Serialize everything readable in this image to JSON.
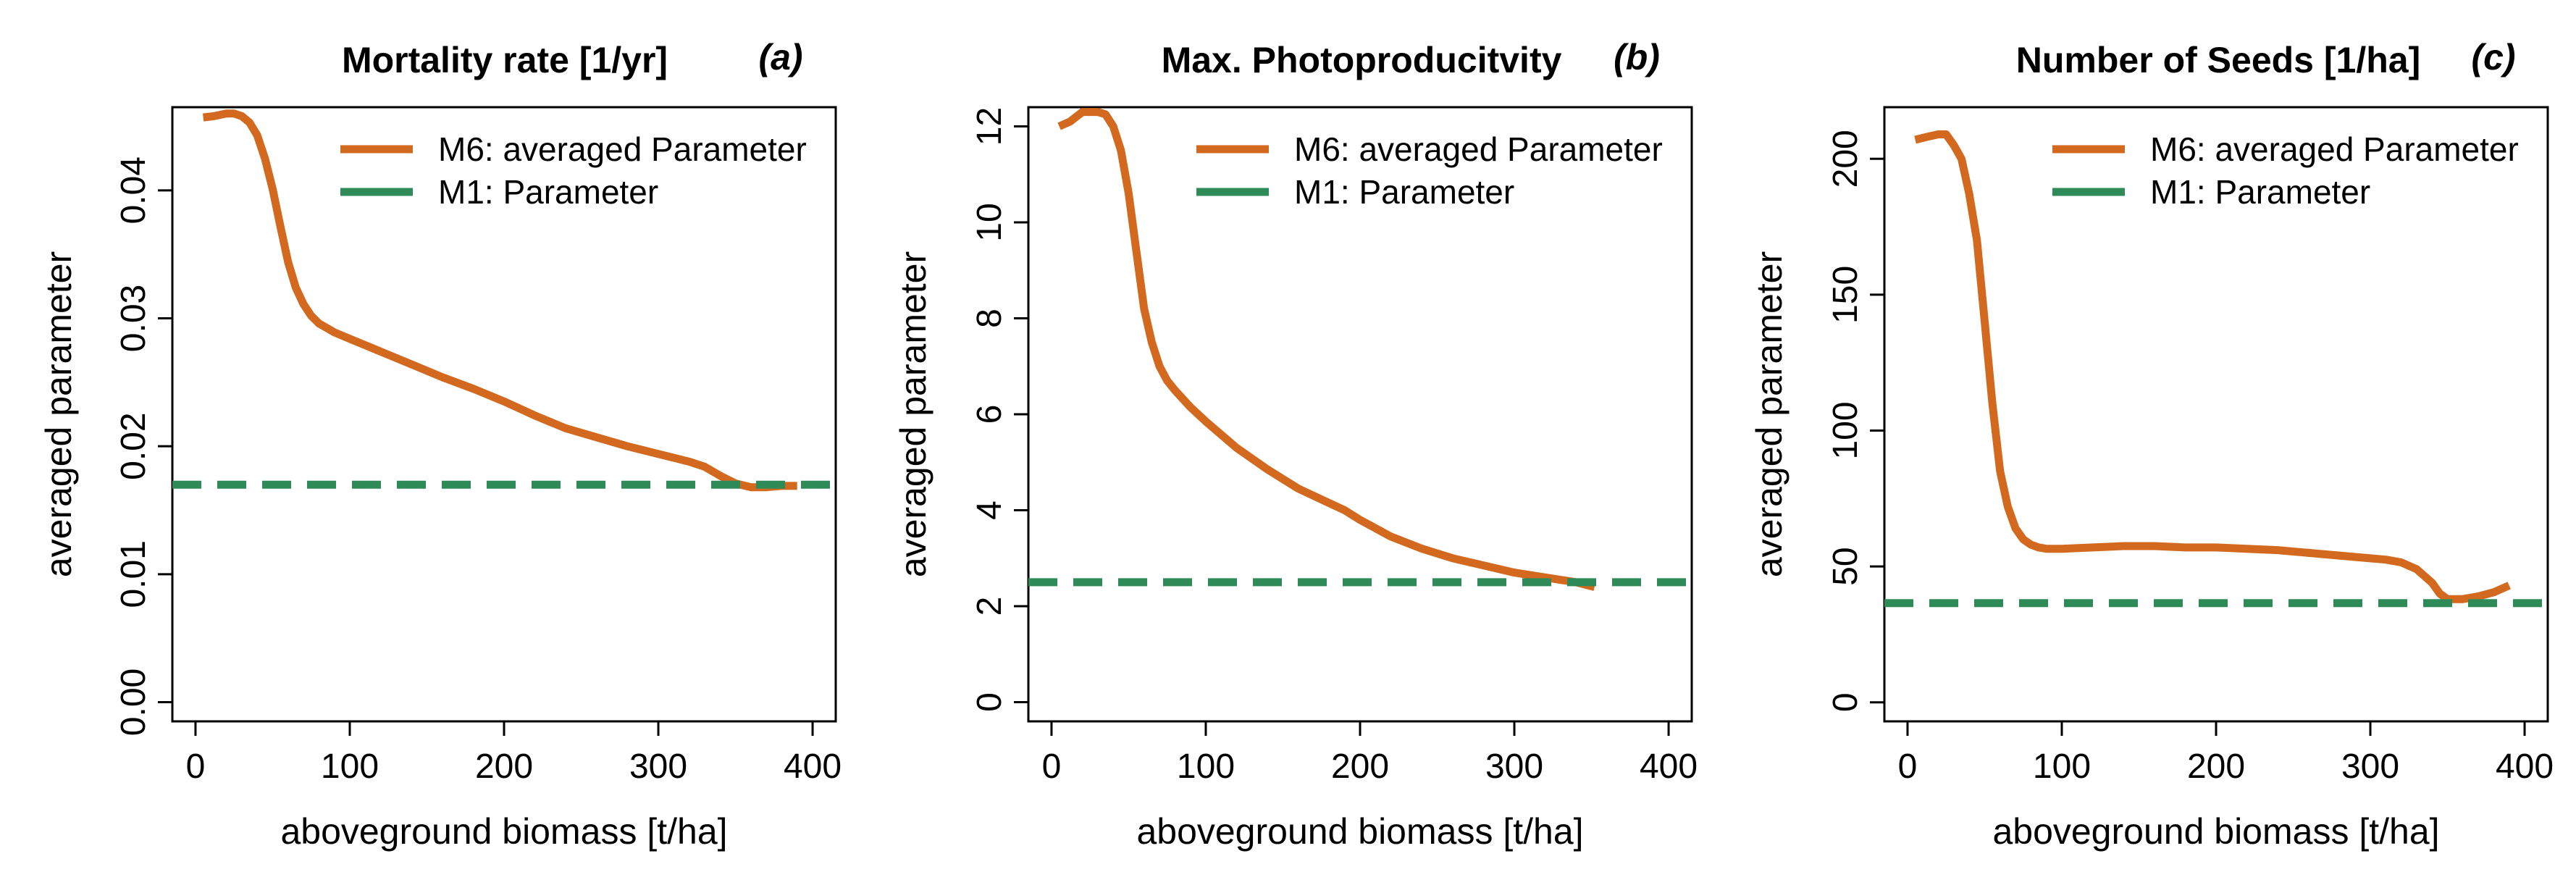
{
  "colors": {
    "m6_line": "#d2691e",
    "m1_line": "#2e8b57",
    "axis": "#000000",
    "background": "#ffffff"
  },
  "chart_data": [
    {
      "type": "line",
      "panel": "a",
      "title": "Mortality rate [1/yr]",
      "panel_letter": "(a)",
      "xlabel": "aboveground biomass [t/ha]",
      "ylabel": "averaged parameter",
      "xlim": [
        -15,
        415
      ],
      "ylim": [
        -0.0015,
        0.0465
      ],
      "x_ticks": [
        0,
        100,
        200,
        300,
        400
      ],
      "x_tick_labels": [
        "0",
        "100",
        "200",
        "300",
        "400"
      ],
      "y_ticks": [
        0,
        0.01,
        0.02,
        0.03,
        0.04
      ],
      "y_tick_labels": [
        "0.00",
        "0.01",
        "0.02",
        "0.03",
        "0.04"
      ],
      "legend_position": "top-right",
      "series": [
        {
          "name": "M6: averaged Parameter",
          "style": "solid",
          "x": [
            5,
            12,
            20,
            25,
            30,
            35,
            40,
            45,
            50,
            55,
            60,
            65,
            70,
            75,
            80,
            90,
            100,
            120,
            140,
            160,
            180,
            200,
            220,
            240,
            260,
            280,
            300,
            310,
            320,
            330,
            340,
            350,
            360,
            370,
            380,
            390
          ],
          "y": [
            0.0457,
            0.0458,
            0.046,
            0.046,
            0.0458,
            0.0453,
            0.0443,
            0.0425,
            0.0401,
            0.0372,
            0.0344,
            0.0324,
            0.0311,
            0.0302,
            0.0296,
            0.0289,
            0.0284,
            0.0274,
            0.0264,
            0.0254,
            0.0245,
            0.0235,
            0.0224,
            0.0214,
            0.0207,
            0.02,
            0.0194,
            0.0191,
            0.0188,
            0.0184,
            0.0177,
            0.0171,
            0.0168,
            0.0168,
            0.0169,
            0.0169
          ]
        },
        {
          "name": "M1: Parameter",
          "style": "dashed",
          "x": [
            -15,
            415
          ],
          "y": [
            0.017,
            0.017
          ]
        }
      ]
    },
    {
      "type": "line",
      "panel": "b",
      "title": "Max. Photoproducitvity",
      "panel_letter": "(b)",
      "xlabel": "aboveground biomass [t/ha]",
      "ylabel": "averaged parameter",
      "xlim": [
        -15,
        415
      ],
      "ylim": [
        -0.4,
        12.4
      ],
      "x_ticks": [
        0,
        100,
        200,
        300,
        400
      ],
      "x_tick_labels": [
        "0",
        "100",
        "200",
        "300",
        "400"
      ],
      "y_ticks": [
        0,
        2,
        4,
        6,
        8,
        10,
        12
      ],
      "y_tick_labels": [
        "0",
        "2",
        "4",
        "6",
        "8",
        "10",
        "12"
      ],
      "legend_position": "top-right",
      "series": [
        {
          "name": "M6: averaged Parameter",
          "style": "solid",
          "x": [
            5,
            12,
            20,
            25,
            30,
            35,
            40,
            45,
            50,
            55,
            60,
            65,
            70,
            75,
            80,
            90,
            100,
            120,
            140,
            160,
            180,
            190,
            200,
            220,
            240,
            260,
            280,
            300,
            320,
            340,
            352
          ],
          "y": [
            12.0,
            12.1,
            12.3,
            12.3,
            12.3,
            12.25,
            12.0,
            11.5,
            10.6,
            9.4,
            8.2,
            7.5,
            7.0,
            6.7,
            6.5,
            6.15,
            5.85,
            5.3,
            4.85,
            4.45,
            4.15,
            4.0,
            3.8,
            3.45,
            3.2,
            3.0,
            2.85,
            2.7,
            2.6,
            2.5,
            2.4
          ]
        },
        {
          "name": "M1: Parameter",
          "style": "dashed",
          "x": [
            -15,
            415
          ],
          "y": [
            2.5,
            2.5
          ]
        }
      ]
    },
    {
      "type": "line",
      "panel": "c",
      "title": "Number of Seeds [1/ha]",
      "panel_letter": "(c)",
      "xlabel": "aboveground biomass [t/ha]",
      "ylabel": "averaged parameter",
      "xlim": [
        -15,
        415
      ],
      "ylim": [
        -7,
        219
      ],
      "x_ticks": [
        0,
        100,
        200,
        300,
        400
      ],
      "x_tick_labels": [
        "0",
        "100",
        "200",
        "300",
        "400"
      ],
      "y_ticks": [
        0,
        50,
        100,
        150,
        200
      ],
      "y_tick_labels": [
        "0",
        "50",
        "100",
        "150",
        "200"
      ],
      "legend_position": "top-right",
      "series": [
        {
          "name": "M6: averaged Parameter",
          "style": "solid",
          "x": [
            5,
            12,
            20,
            25,
            30,
            35,
            40,
            45,
            50,
            55,
            60,
            65,
            70,
            75,
            80,
            85,
            90,
            100,
            120,
            140,
            160,
            180,
            200,
            220,
            240,
            260,
            280,
            300,
            310,
            320,
            330,
            340,
            345,
            350,
            360,
            370,
            380,
            390
          ],
          "y": [
            207,
            208,
            209,
            209,
            205,
            200,
            187,
            170,
            140,
            110,
            85,
            72,
            64,
            60,
            58,
            57,
            56.5,
            56.5,
            57,
            57.5,
            57.5,
            57,
            57,
            56.5,
            56,
            55,
            54,
            53,
            52.5,
            51.5,
            49,
            44,
            40,
            38,
            38,
            39,
            40.5,
            43
          ]
        },
        {
          "name": "M1: Parameter",
          "style": "dashed",
          "x": [
            -15,
            415
          ],
          "y": [
            36.5,
            36.5
          ]
        }
      ]
    }
  ]
}
